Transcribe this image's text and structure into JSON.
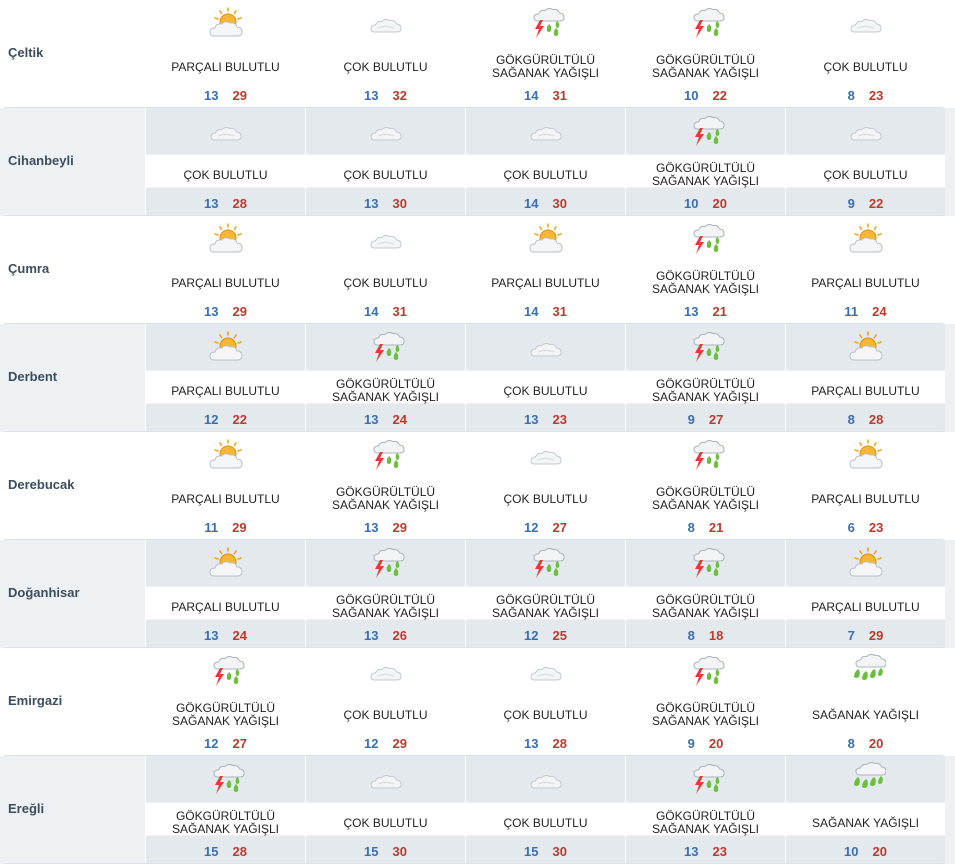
{
  "labels": {
    "parcali": "PARÇALI BULUTLU",
    "cok": "ÇOK BULUTLU",
    "gok": "GÖKGÜRÜLTÜLÜ\nSAĞANAK YAĞIŞLI",
    "saganak": "SAĞANAK YAĞIŞLI"
  },
  "rows": [
    {
      "city": "Çeltik",
      "days": [
        {
          "icon": "partly-cloudy-icon",
          "desc": "PARÇALI BULUTLU",
          "min": "13",
          "max": "29"
        },
        {
          "icon": "cloudy-icon",
          "desc": "ÇOK BULUTLU",
          "min": "13",
          "max": "32"
        },
        {
          "icon": "thunder-shower-icon",
          "desc": "GÖKGÜRÜLTÜLÜ\nSAĞANAK YAĞIŞLI",
          "min": "14",
          "max": "31"
        },
        {
          "icon": "thunder-shower-icon",
          "desc": "GÖKGÜRÜLTÜLÜ\nSAĞANAK YAĞIŞLI",
          "min": "10",
          "max": "22"
        },
        {
          "icon": "cloudy-icon",
          "desc": "ÇOK BULUTLU",
          "min": "8",
          "max": "23"
        }
      ]
    },
    {
      "city": "Cihanbeyli",
      "days": [
        {
          "icon": "cloudy-icon",
          "desc": "ÇOK BULUTLU",
          "min": "13",
          "max": "28"
        },
        {
          "icon": "cloudy-icon",
          "desc": "ÇOK BULUTLU",
          "min": "13",
          "max": "30"
        },
        {
          "icon": "cloudy-icon",
          "desc": "ÇOK BULUTLU",
          "min": "14",
          "max": "30"
        },
        {
          "icon": "thunder-shower-icon",
          "desc": "GÖKGÜRÜLTÜLÜ\nSAĞANAK YAĞIŞLI",
          "min": "10",
          "max": "20"
        },
        {
          "icon": "cloudy-icon",
          "desc": "ÇOK BULUTLU",
          "min": "9",
          "max": "22"
        }
      ]
    },
    {
      "city": "Çumra",
      "days": [
        {
          "icon": "partly-cloudy-icon",
          "desc": "PARÇALI BULUTLU",
          "min": "13",
          "max": "29"
        },
        {
          "icon": "cloudy-icon",
          "desc": "ÇOK BULUTLU",
          "min": "14",
          "max": "31"
        },
        {
          "icon": "partly-cloudy-icon",
          "desc": "PARÇALI BULUTLU",
          "min": "14",
          "max": "31"
        },
        {
          "icon": "thunder-shower-icon",
          "desc": "GÖKGÜRÜLTÜLÜ\nSAĞANAK YAĞIŞLI",
          "min": "13",
          "max": "21"
        },
        {
          "icon": "partly-cloudy-icon",
          "desc": "PARÇALI BULUTLU",
          "min": "11",
          "max": "24"
        }
      ]
    },
    {
      "city": "Derbent",
      "days": [
        {
          "icon": "partly-cloudy-icon",
          "desc": "PARÇALI BULUTLU",
          "min": "12",
          "max": "22"
        },
        {
          "icon": "thunder-shower-icon",
          "desc": "GÖKGÜRÜLTÜLÜ\nSAĞANAK YAĞIŞLI",
          "min": "13",
          "max": "24"
        },
        {
          "icon": "cloudy-icon",
          "desc": "ÇOK BULUTLU",
          "min": "13",
          "max": "23"
        },
        {
          "icon": "thunder-shower-icon",
          "desc": "GÖKGÜRÜLTÜLÜ\nSAĞANAK YAĞIŞLI",
          "min": "9",
          "max": "27"
        },
        {
          "icon": "partly-cloudy-icon",
          "desc": "PARÇALI BULUTLU",
          "min": "8",
          "max": "28"
        }
      ]
    },
    {
      "city": "Derebucak",
      "days": [
        {
          "icon": "partly-cloudy-icon",
          "desc": "PARÇALI BULUTLU",
          "min": "11",
          "max": "29"
        },
        {
          "icon": "thunder-shower-icon",
          "desc": "GÖKGÜRÜLTÜLÜ\nSAĞANAK YAĞIŞLI",
          "min": "13",
          "max": "29"
        },
        {
          "icon": "cloudy-icon",
          "desc": "ÇOK BULUTLU",
          "min": "12",
          "max": "27"
        },
        {
          "icon": "thunder-shower-icon",
          "desc": "GÖKGÜRÜLTÜLÜ\nSAĞANAK YAĞIŞLI",
          "min": "8",
          "max": "21"
        },
        {
          "icon": "partly-cloudy-icon",
          "desc": "PARÇALI BULUTLU",
          "min": "6",
          "max": "23"
        }
      ]
    },
    {
      "city": "Doğanhisar",
      "days": [
        {
          "icon": "partly-cloudy-icon",
          "desc": "PARÇALI BULUTLU",
          "min": "13",
          "max": "24"
        },
        {
          "icon": "thunder-shower-icon",
          "desc": "GÖKGÜRÜLTÜLÜ\nSAĞANAK YAĞIŞLI",
          "min": "13",
          "max": "26"
        },
        {
          "icon": "thunder-shower-icon",
          "desc": "GÖKGÜRÜLTÜLÜ\nSAĞANAK YAĞIŞLI",
          "min": "12",
          "max": "25"
        },
        {
          "icon": "thunder-shower-icon",
          "desc": "GÖKGÜRÜLTÜLÜ\nSAĞANAK YAĞIŞLI",
          "min": "8",
          "max": "18"
        },
        {
          "icon": "partly-cloudy-icon",
          "desc": "PARÇALI BULUTLU",
          "min": "7",
          "max": "29"
        }
      ]
    },
    {
      "city": "Emirgazi",
      "days": [
        {
          "icon": "thunder-shower-icon",
          "desc": "GÖKGÜRÜLTÜLÜ\nSAĞANAK YAĞIŞLI",
          "min": "12",
          "max": "27"
        },
        {
          "icon": "cloudy-icon",
          "desc": "ÇOK BULUTLU",
          "min": "12",
          "max": "29"
        },
        {
          "icon": "cloudy-icon",
          "desc": "ÇOK BULUTLU",
          "min": "13",
          "max": "28"
        },
        {
          "icon": "thunder-shower-icon",
          "desc": "GÖKGÜRÜLTÜLÜ\nSAĞANAK YAĞIŞLI",
          "min": "9",
          "max": "20"
        },
        {
          "icon": "shower-icon",
          "desc": "SAĞANAK YAĞIŞLI",
          "min": "8",
          "max": "20"
        }
      ]
    },
    {
      "city": "Ereğli",
      "days": [
        {
          "icon": "thunder-shower-icon",
          "desc": "GÖKGÜRÜLTÜLÜ\nSAĞANAK YAĞIŞLI",
          "min": "15",
          "max": "28"
        },
        {
          "icon": "cloudy-icon",
          "desc": "ÇOK BULUTLU",
          "min": "15",
          "max": "30"
        },
        {
          "icon": "cloudy-icon",
          "desc": "ÇOK BULUTLU",
          "min": "15",
          "max": "30"
        },
        {
          "icon": "thunder-shower-icon",
          "desc": "GÖKGÜRÜLTÜLÜ\nSAĞANAK YAĞIŞLI",
          "min": "13",
          "max": "23"
        },
        {
          "icon": "shower-icon",
          "desc": "SAĞANAK YAĞIŞLI",
          "min": "10",
          "max": "20"
        }
      ]
    }
  ],
  "colors": {
    "min_temp": "#3a6fb0",
    "max_temp": "#c0392b",
    "city_text": "#3c4d5e",
    "alt_row": "#eef1f4"
  }
}
